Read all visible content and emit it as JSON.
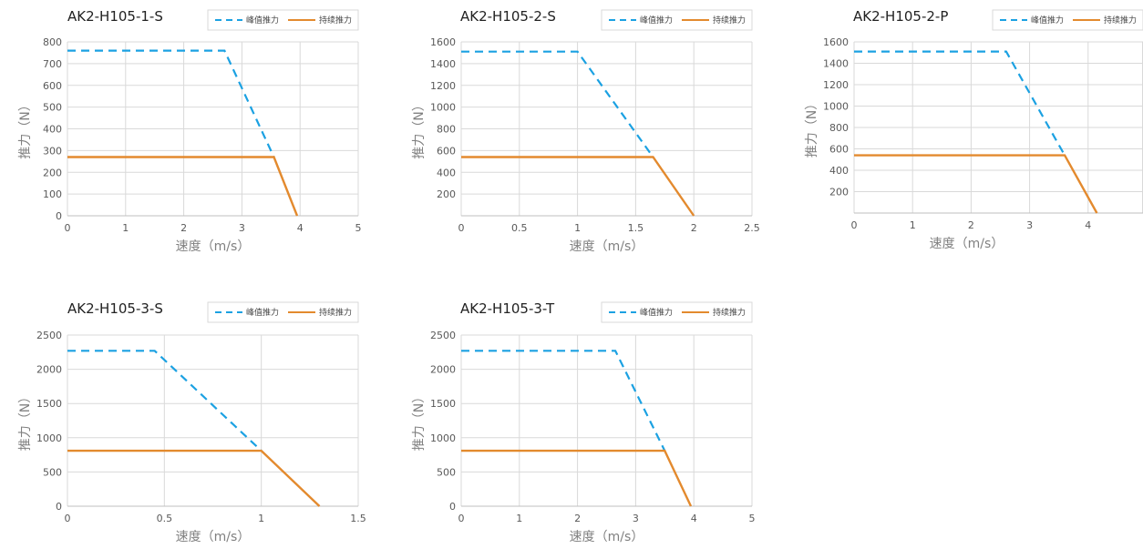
{
  "legend": {
    "peak": "峰值推力",
    "continuous": "持续推力"
  },
  "colors": {
    "peak": "#1ba1e2",
    "continuous": "#e38a2e",
    "grid": "#d9d9d9"
  },
  "chart_data": [
    {
      "type": "line",
      "title": "AK2-H105-1-S",
      "xlabel": "速度（m/s）",
      "ylabel": "推力（N）",
      "xlim": [
        0,
        5
      ],
      "ylim": [
        0,
        800
      ],
      "xticks": [
        "0",
        "1",
        "2",
        "3",
        "4",
        "5"
      ],
      "yticks": [
        "0",
        "100",
        "200",
        "300",
        "400",
        "500",
        "600",
        "700",
        "800"
      ],
      "grid": true,
      "legend_position": "top-right",
      "series": [
        {
          "name": "峰值推力",
          "style": "dashed",
          "x": [
            0,
            2.7,
            3.55
          ],
          "y": [
            760,
            760,
            270
          ]
        },
        {
          "name": "持续推力",
          "style": "solid",
          "x": [
            0,
            3.55,
            3.95
          ],
          "y": [
            270,
            270,
            0
          ]
        }
      ]
    },
    {
      "type": "line",
      "title": "AK2-H105-2-S",
      "xlabel": "速度（m/s）",
      "ylabel": "推力（N）",
      "xlim": [
        0,
        2.5
      ],
      "ylim": [
        0,
        1600
      ],
      "xticks": [
        "0",
        "0.5",
        "1",
        "1.5",
        "2",
        "2.5"
      ],
      "yticks": [
        "",
        "200",
        "400",
        "600",
        "800",
        "1000",
        "1200",
        "1400",
        "1600"
      ],
      "grid": true,
      "legend_position": "top-right",
      "series": [
        {
          "name": "峰值推力",
          "style": "dashed",
          "x": [
            0,
            1.0,
            1.65
          ],
          "y": [
            1510,
            1510,
            540
          ]
        },
        {
          "name": "持续推力",
          "style": "solid",
          "x": [
            0,
            1.65,
            2.0
          ],
          "y": [
            540,
            540,
            0
          ]
        }
      ]
    },
    {
      "type": "line",
      "title": "AK2-H105-2-P",
      "xlabel": "速度（m/s）",
      "ylabel": "推力（N）",
      "xlim": [
        0,
        5
      ],
      "ylim": [
        0,
        1600
      ],
      "xticks": [
        "0",
        "1",
        "2",
        "3",
        "4"
      ],
      "yticks": [
        "",
        "200",
        "400",
        "600",
        "800",
        "1000",
        "1200",
        "1400",
        "1600"
      ],
      "grid": true,
      "legend_position": "top-right",
      "series": [
        {
          "name": "峰值推力",
          "style": "dashed",
          "x": [
            0,
            2.6,
            3.6
          ],
          "y": [
            1510,
            1510,
            540
          ]
        },
        {
          "name": "持续推力",
          "style": "solid",
          "x": [
            0,
            3.6,
            4.15
          ],
          "y": [
            540,
            540,
            0
          ]
        }
      ]
    },
    {
      "type": "line",
      "title": "AK2-H105-3-S",
      "xlabel": "速度（m/s）",
      "ylabel": "推力（N）",
      "xlim": [
        0,
        1.5
      ],
      "ylim": [
        0,
        2500
      ],
      "xticks": [
        "0",
        "0.5",
        "1",
        "1.5"
      ],
      "yticks": [
        "0",
        "500",
        "1000",
        "1500",
        "2000",
        "2500"
      ],
      "grid": true,
      "legend_position": "top-right",
      "series": [
        {
          "name": "峰值推力",
          "style": "dashed",
          "x": [
            0,
            0.45,
            1.0
          ],
          "y": [
            2270,
            2270,
            810
          ]
        },
        {
          "name": "持续推力",
          "style": "solid",
          "x": [
            0,
            1.0,
            1.3
          ],
          "y": [
            810,
            810,
            0
          ]
        }
      ]
    },
    {
      "type": "line",
      "title": "AK2-H105-3-T",
      "xlabel": "速度（m/s）",
      "ylabel": "推力（N）",
      "xlim": [
        0,
        5
      ],
      "ylim": [
        0,
        2500
      ],
      "xticks": [
        "0",
        "1",
        "2",
        "3",
        "4",
        "5"
      ],
      "yticks": [
        "0",
        "500",
        "1000",
        "1500",
        "2000",
        "2500"
      ],
      "grid": true,
      "legend_position": "top-right",
      "series": [
        {
          "name": "峰值推力",
          "style": "dashed",
          "x": [
            0,
            2.65,
            3.5
          ],
          "y": [
            2270,
            2270,
            810
          ]
        },
        {
          "name": "持续推力",
          "style": "solid",
          "x": [
            0,
            3.5,
            3.95
          ],
          "y": [
            810,
            810,
            0
          ]
        }
      ]
    }
  ]
}
